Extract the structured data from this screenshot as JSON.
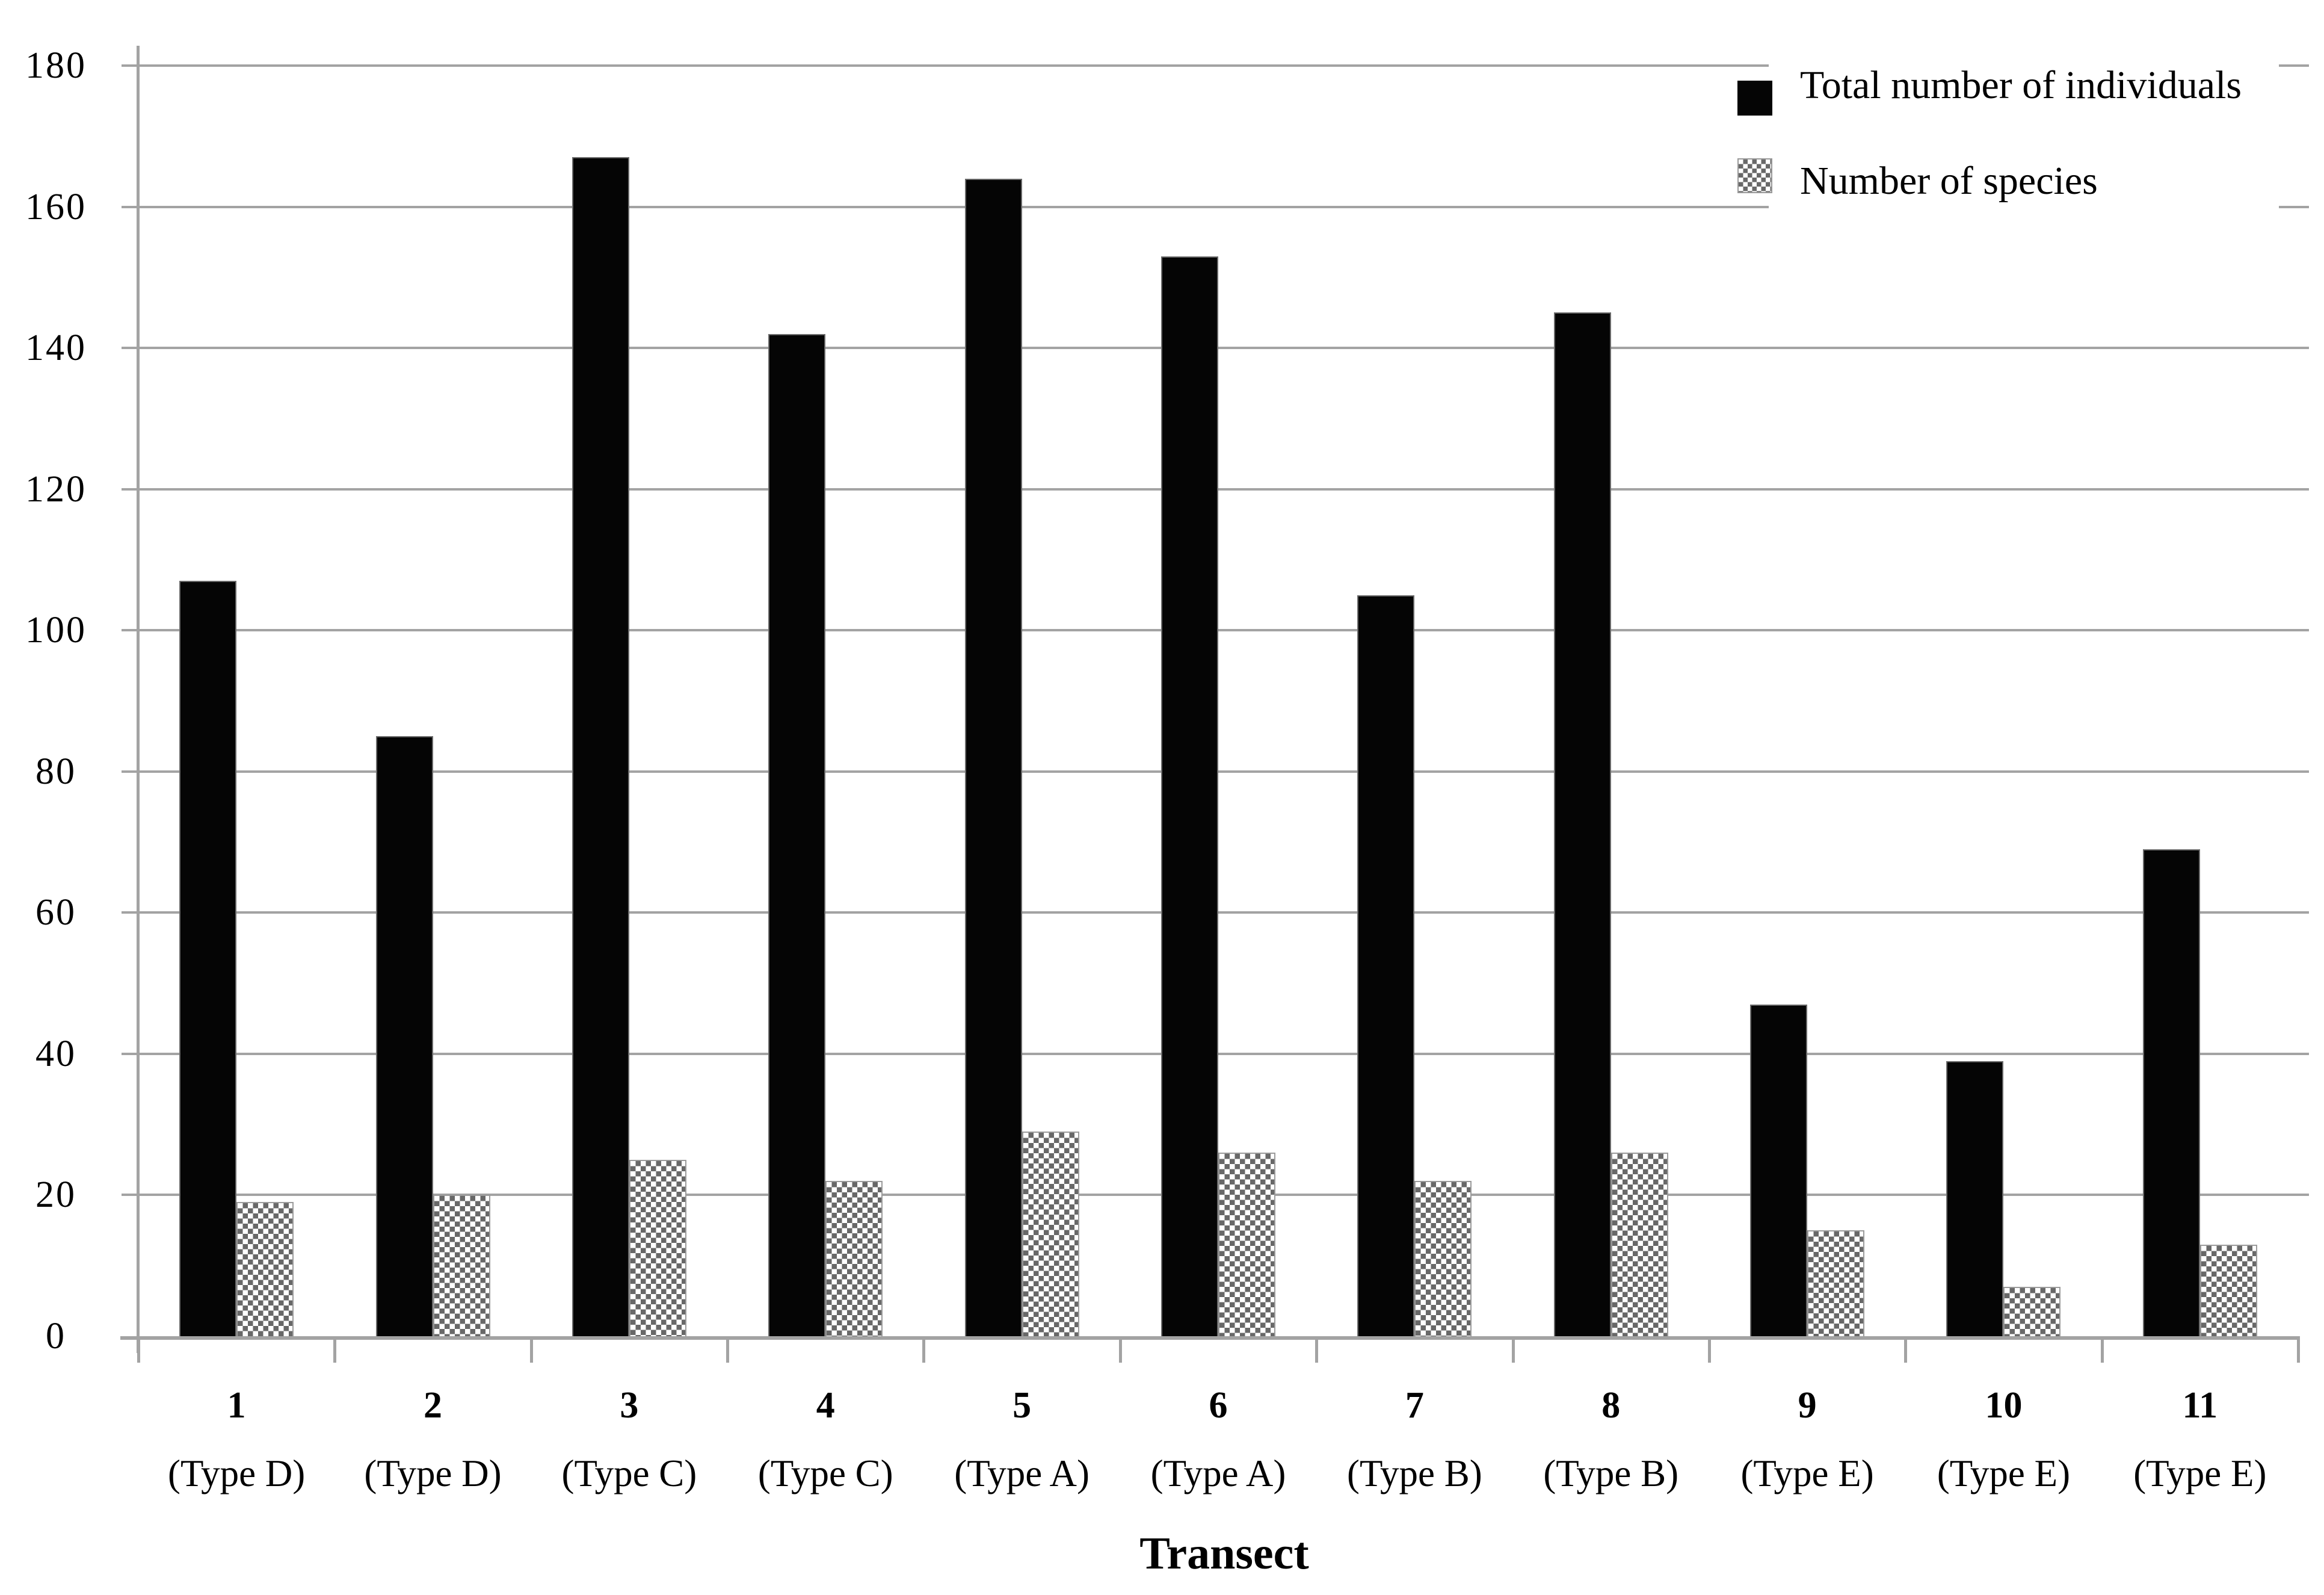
{
  "chart_data": {
    "type": "bar",
    "title": "",
    "xlabel": "Transect",
    "ylabel": "",
    "ylim": [
      0,
      180
    ],
    "ytick_step": 20,
    "grid": true,
    "legend_position": "top-right",
    "categories": [
      "1",
      "2",
      "3",
      "4",
      "5",
      "6",
      "7",
      "8",
      "9",
      "10",
      "11"
    ],
    "category_sublabels": [
      "(Type D)",
      "(Type D)",
      "(Type C)",
      "(Type C)",
      "(Type A)",
      "(Type A)",
      "(Type B)",
      "(Type B)",
      "(Type E)",
      "(Type E)",
      "(Type E)"
    ],
    "series": [
      {
        "name": "Total number of individuals",
        "style": "solid-black",
        "values": [
          107,
          85,
          167,
          142,
          164,
          153,
          105,
          145,
          47,
          39,
          69
        ]
      },
      {
        "name": "Number of species",
        "style": "checker-gray",
        "values": [
          19,
          20,
          25,
          22,
          29,
          26,
          22,
          26,
          15,
          7,
          13
        ]
      }
    ]
  },
  "colors": {
    "individuals_bar": "#050505",
    "species_pattern_gray": "#686868",
    "axis_and_grid": "#a3a3a3",
    "text": "#000000",
    "background": "#ffffff"
  }
}
